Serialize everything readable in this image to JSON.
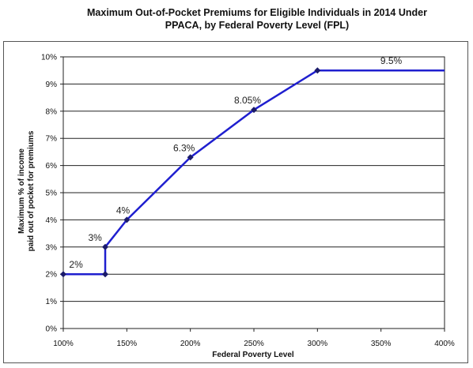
{
  "chart_data": {
    "type": "line",
    "title_line1": "Maximum Out-of-Pocket Premiums for Eligible Individuals in 2014 Under",
    "title_line2": "PPACA, by Federal Poverty Level (FPL)",
    "xlabel": "Federal Poverty Level",
    "ylabel_line1": "Maximum % of income",
    "ylabel_line2": "paid out of pocket for premiums",
    "xlim": [
      100,
      400
    ],
    "ylim": [
      0,
      10
    ],
    "x_ticks": [
      100,
      150,
      200,
      250,
      300,
      350,
      400
    ],
    "y_ticks": [
      0,
      1,
      2,
      3,
      4,
      5,
      6,
      7,
      8,
      9,
      10
    ],
    "x_tick_labels": [
      "100%",
      "150%",
      "200%",
      "250%",
      "300%",
      "350%",
      "400%"
    ],
    "y_tick_labels": [
      "0%",
      "1%",
      "2%",
      "3%",
      "4%",
      "5%",
      "6%",
      "7%",
      "8%",
      "9%",
      "10%"
    ],
    "grid": "horizontal",
    "line_color": "#1f1fcf",
    "series": [
      {
        "x": [
          100,
          133,
          133,
          150,
          200,
          250,
          300,
          400
        ],
        "y": [
          2,
          2,
          3,
          4,
          6.3,
          8.05,
          9.5,
          9.5
        ],
        "markers": [
          true,
          true,
          true,
          true,
          true,
          true,
          true,
          false
        ]
      }
    ],
    "data_labels": [
      {
        "text": "2%",
        "x": 110,
        "y": 2
      },
      {
        "text": "3%",
        "x": 125,
        "y": 3
      },
      {
        "text": "4%",
        "x": 147,
        "y": 4
      },
      {
        "text": "6.3%",
        "x": 195,
        "y": 6.3
      },
      {
        "text": "8.05%",
        "x": 245,
        "y": 8.05
      },
      {
        "text": "9.5%",
        "x": 358,
        "y": 9.5
      }
    ]
  }
}
